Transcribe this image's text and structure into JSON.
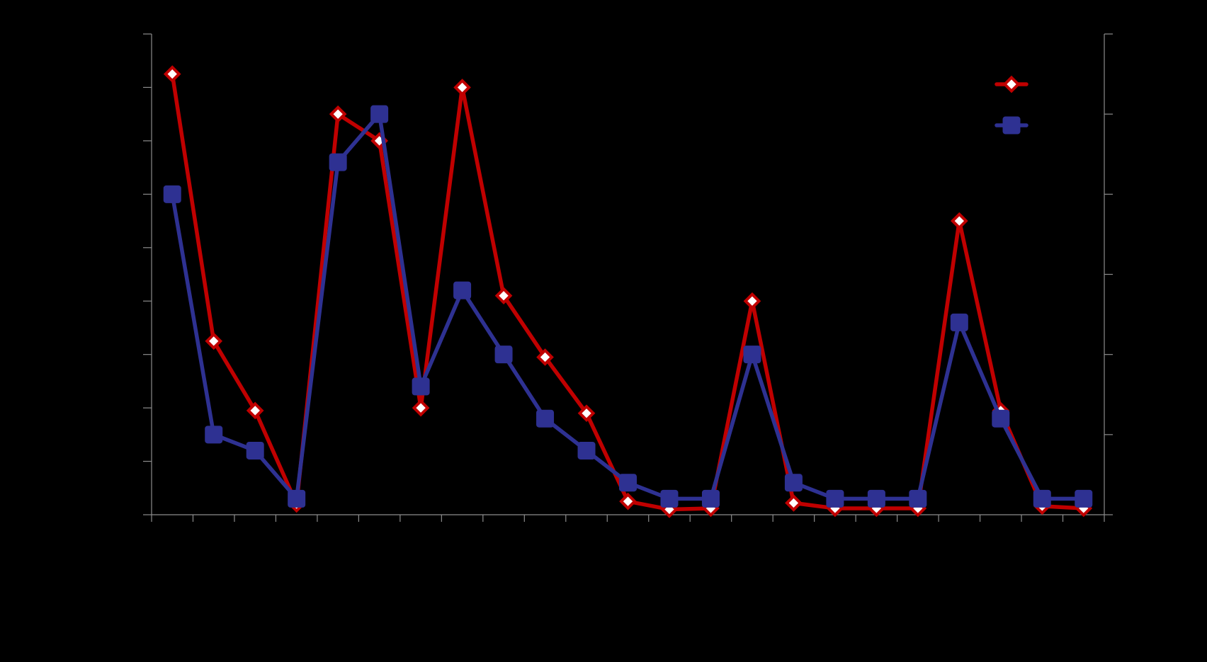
{
  "chart_data": {
    "type": "line",
    "x": [
      1,
      2,
      3,
      4,
      5,
      6,
      7,
      8,
      9,
      10,
      11,
      12,
      13,
      14,
      15,
      16,
      17,
      18,
      19,
      20,
      21,
      22,
      23
    ],
    "series": [
      {
        "axis": "left",
        "marker": "diamond",
        "color": "#c00000",
        "values": [
          8.25,
          3.25,
          1.95,
          0.2,
          7.5,
          7.0,
          2.0,
          8.0,
          4.1,
          2.95,
          1.9,
          0.25,
          0.1,
          0.12,
          4.0,
          0.22,
          0.12,
          0.12,
          0.12,
          5.5,
          1.95,
          0.16,
          0.12
        ]
      },
      {
        "axis": "right",
        "marker": "square",
        "color": "#2e3192",
        "values": [
          4.0,
          1.0,
          0.8,
          0.2,
          4.4,
          5.0,
          1.6,
          2.8,
          2.0,
          1.2,
          0.8,
          0.4,
          0.2,
          0.2,
          2.0,
          0.4,
          0.2,
          0.2,
          0.2,
          2.4,
          1.2,
          0.2,
          0.2
        ]
      }
    ],
    "y_left": {
      "range": [
        0,
        9
      ],
      "ticks": [
        0,
        1,
        2,
        3,
        4,
        5,
        6,
        7,
        8,
        9
      ]
    },
    "y_right": {
      "range": [
        0,
        6
      ],
      "ticks": [
        0,
        1,
        2,
        3,
        4,
        5,
        6
      ]
    },
    "x_range": [
      0.5,
      23.5
    ],
    "legend": {
      "placement": "top-right"
    },
    "grid": false,
    "background": "#000000",
    "axis_color": "#8c8c8c",
    "marker_fill": "#ffffff"
  }
}
